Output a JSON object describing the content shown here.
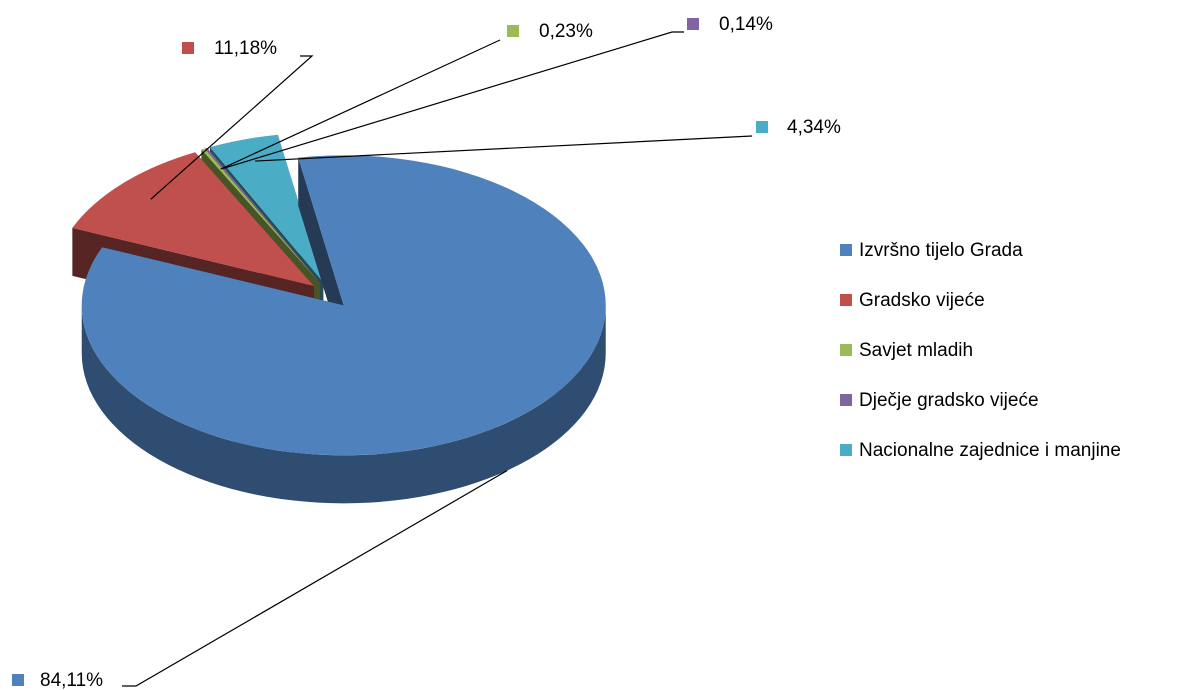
{
  "chart_data": {
    "type": "pie",
    "categories": [
      "Izvršno tijelo Grada",
      "Gradsko vijeće",
      "Savjet mladih",
      "Dječje gradsko vijeće",
      "Nacionalne zajednice i manjine"
    ],
    "values": [
      84.11,
      11.18,
      0.23,
      0.14,
      4.34
    ],
    "value_labels": [
      "84,11%",
      "11,18%",
      "0,23%",
      "0,14%",
      "4,34%"
    ],
    "colors": [
      "#4f81bd",
      "#c0504d",
      "#9bbb59",
      "#8064a2",
      "#4bacc6"
    ],
    "legend": "right"
  }
}
